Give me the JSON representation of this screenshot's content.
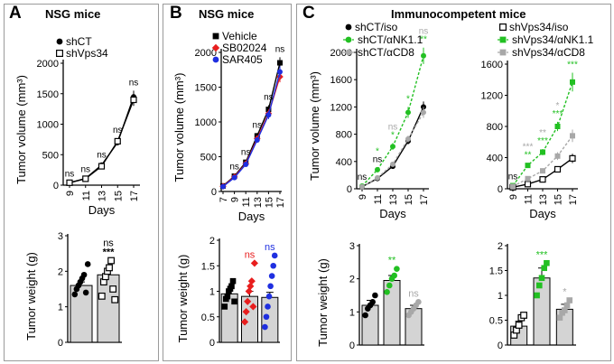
{
  "panels": [
    {
      "letter": "A",
      "title": "NSG mice"
    },
    {
      "letter": "B",
      "title": "NSG mice"
    },
    {
      "letter": "C",
      "title": "Immunocompetent mice"
    }
  ],
  "colors": {
    "black": "#000000",
    "green": "#22c022",
    "gray": "#a8a8a8",
    "red": "#e81e1e",
    "blue": "#1f2fe0",
    "bar": "#d4d4d4"
  },
  "chart_data": [
    {
      "id": "A-growth",
      "type": "line",
      "ylabel": "Tumor volume (mm³)",
      "xlabel": "Days",
      "x": [
        9,
        11,
        13,
        15,
        17
      ],
      "ylim": [
        0,
        2000
      ],
      "yticks": [
        0,
        500,
        1000,
        1500,
        2000
      ],
      "series": [
        {
          "name": "shCT",
          "values": [
            40,
            110,
            330,
            700,
            1450
          ],
          "err": [
            10,
            15,
            30,
            50,
            100
          ],
          "color": "#000000",
          "marker": "filled-circle",
          "dashed": false
        },
        {
          "name": "shVps34",
          "values": [
            40,
            105,
            310,
            720,
            1400
          ],
          "err": [
            10,
            15,
            30,
            50,
            100
          ],
          "color": "#000000",
          "marker": "open-square",
          "dashed": false
        }
      ],
      "annotations": [
        {
          "x": 9,
          "text": "ns",
          "color": "#000000"
        },
        {
          "x": 11,
          "text": "ns",
          "color": "#000000"
        },
        {
          "x": 13,
          "text": "ns",
          "color": "#000000"
        },
        {
          "x": 15,
          "text": "ns",
          "color": "#000000"
        },
        {
          "x": 17,
          "text": "ns",
          "color": "#000000"
        }
      ]
    },
    {
      "id": "A-weight",
      "type": "bar",
      "ylabel": "Tumor weight (g)",
      "ylim": [
        0,
        3
      ],
      "yticks": [
        0,
        1,
        2,
        3
      ],
      "groups": [
        {
          "value": 1.6,
          "err": 0.1,
          "points": [
            1.35,
            1.5,
            1.6,
            1.7,
            1.8,
            1.9,
            1.4,
            2.2
          ],
          "color": "#000000",
          "marker": "filled-circle",
          "label": ""
        },
        {
          "value": 1.9,
          "err": 0.15,
          "points": [
            1.3,
            1.7,
            1.85,
            2.0,
            2.1,
            2.3,
            1.5,
            1.2
          ],
          "color": "#000000",
          "marker": "open-square",
          "label": "ns\n***"
        }
      ]
    },
    {
      "id": "B-growth",
      "type": "line",
      "ylabel": "Tumor volume (mm³)",
      "xlabel": "Days",
      "x": [
        7,
        9,
        11,
        13,
        15,
        17
      ],
      "ylim": [
        0,
        2000
      ],
      "yticks": [
        0,
        500,
        1000,
        1500,
        2000
      ],
      "series": [
        {
          "name": "Vehicle",
          "values": [
            80,
            220,
            420,
            800,
            1180,
            1850
          ],
          "err": [
            10,
            20,
            30,
            40,
            60,
            80
          ],
          "color": "#000000",
          "marker": "filled-square",
          "dashed": false
        },
        {
          "name": "SB02024",
          "values": [
            75,
            210,
            400,
            760,
            1120,
            1650
          ],
          "err": [
            10,
            20,
            30,
            40,
            60,
            80
          ],
          "color": "#e81e1e",
          "marker": "diamond",
          "dashed": false
        },
        {
          "name": "SAR405",
          "values": [
            70,
            200,
            390,
            740,
            1100,
            1720
          ],
          "err": [
            10,
            20,
            30,
            40,
            60,
            80
          ],
          "color": "#1f2fe0",
          "marker": "filled-circle",
          "dashed": false
        }
      ],
      "annotations": [
        {
          "x": 9,
          "text": "ns",
          "color": "#000000"
        },
        {
          "x": 11,
          "text": "ns",
          "color": "#000000"
        },
        {
          "x": 13,
          "text": "ns",
          "color": "#000000"
        },
        {
          "x": 15,
          "text": "ns",
          "color": "#000000"
        },
        {
          "x": 17,
          "text": "ns",
          "color": "#000000"
        }
      ]
    },
    {
      "id": "B-weight",
      "type": "bar",
      "ylabel": "Tumor weight (g)",
      "ylim": [
        0,
        2
      ],
      "yticks": [
        0,
        0.5,
        1,
        1.5,
        2
      ],
      "groups": [
        {
          "value": 0.95,
          "err": 0.06,
          "points": [
            0.7,
            0.85,
            0.9,
            1.0,
            1.05,
            1.1,
            1.2,
            0.8
          ],
          "color": "#000000",
          "marker": "filled-square",
          "label": ""
        },
        {
          "value": 0.9,
          "err": 0.1,
          "points": [
            0.4,
            0.6,
            0.8,
            1.0,
            1.1,
            1.2,
            0.7,
            1.55
          ],
          "color": "#e81e1e",
          "marker": "diamond",
          "label": "ns"
        },
        {
          "value": 0.88,
          "err": 0.1,
          "points": [
            0.3,
            0.5,
            0.7,
            0.9,
            1.1,
            1.3,
            1.5,
            1.7
          ],
          "color": "#1f2fe0",
          "marker": "filled-circle",
          "label": "ns"
        }
      ]
    },
    {
      "id": "C-growth-shCT",
      "type": "line",
      "ylabel": "Tumor volume (mm³)",
      "xlabel": "Days",
      "x": [
        9,
        11,
        13,
        15,
        17
      ],
      "ylim": [
        0,
        2000
      ],
      "yticks": [
        0,
        400,
        800,
        1200,
        1600,
        2000
      ],
      "series": [
        {
          "name": "shCT/iso",
          "values": [
            30,
            150,
            330,
            700,
            1200
          ],
          "err": [
            10,
            20,
            30,
            50,
            80
          ],
          "color": "#000000",
          "marker": "filled-circle",
          "dashed": false
        },
        {
          "name": "shCT/αNK1.1",
          "values": [
            40,
            280,
            620,
            1120,
            1950
          ],
          "err": [
            10,
            30,
            50,
            80,
            120
          ],
          "color": "#22c022",
          "marker": "filled-circle",
          "dashed": true
        },
        {
          "name": "shCT/αCD8",
          "values": [
            30,
            160,
            360,
            730,
            1120
          ],
          "err": [
            10,
            20,
            30,
            50,
            80
          ],
          "color": "#a8a8a8",
          "marker": "filled-circle",
          "dashed": true
        }
      ],
      "annotations": [
        {
          "x": 9,
          "text": "ns",
          "color": "#000000"
        },
        {
          "x": 11,
          "text": "ns",
          "color": "#000000"
        },
        {
          "x": 11,
          "text": "*",
          "color": "#22c022"
        },
        {
          "x": 13,
          "text": "*",
          "color": "#22c022"
        },
        {
          "x": 13,
          "text": "ns",
          "color": "#a8a8a8"
        },
        {
          "x": 15,
          "text": "*",
          "color": "#22c022"
        },
        {
          "x": 17,
          "text": "**",
          "color": "#22c022"
        },
        {
          "x": 17,
          "text": "ns",
          "color": "#a8a8a8"
        }
      ]
    },
    {
      "id": "C-growth-shVps34",
      "type": "line",
      "xlabel": "Days",
      "x": [
        9,
        11,
        13,
        15,
        17
      ],
      "ylim": [
        0,
        1600
      ],
      "yticks": [
        0,
        400,
        800,
        1200,
        1600
      ],
      "series": [
        {
          "name": "shVps34/iso",
          "values": [
            20,
            60,
            120,
            250,
            390
          ],
          "err": [
            5,
            15,
            25,
            40,
            60
          ],
          "color": "#000000",
          "marker": "open-square",
          "dashed": false
        },
        {
          "name": "shVps34/αNK1.1",
          "values": [
            40,
            300,
            470,
            800,
            1370
          ],
          "err": [
            10,
            30,
            40,
            60,
            120
          ],
          "color": "#22c022",
          "marker": "filled-square",
          "dashed": true
        },
        {
          "name": "shVps34/αCD8",
          "values": [
            30,
            130,
            230,
            420,
            680
          ],
          "err": [
            10,
            20,
            30,
            50,
            80
          ],
          "color": "#a8a8a8",
          "marker": "filled-square",
          "dashed": true
        }
      ],
      "annotations": [
        {
          "x": 9,
          "text": "ns",
          "color": "#000000"
        },
        {
          "x": 11,
          "text": "**",
          "color": "#22c022"
        },
        {
          "x": 11,
          "text": "***",
          "color": "#a8a8a8"
        },
        {
          "x": 13,
          "text": "***",
          "color": "#22c022"
        },
        {
          "x": 13,
          "text": "**",
          "color": "#a8a8a8"
        },
        {
          "x": 15,
          "text": "***",
          "color": "#22c022"
        },
        {
          "x": 15,
          "text": "*",
          "color": "#a8a8a8"
        },
        {
          "x": 17,
          "text": "***",
          "color": "#22c022"
        },
        {
          "x": 17,
          "text": "*",
          "color": "#a8a8a8"
        }
      ]
    },
    {
      "id": "C-weight-shCT",
      "type": "bar",
      "ylabel": "Tumor weight (g)",
      "ylim": [
        0,
        3
      ],
      "yticks": [
        0,
        1,
        2,
        3
      ],
      "groups": [
        {
          "value": 1.2,
          "err": 0.15,
          "points": [
            0.9,
            1.1,
            1.2,
            1.3,
            1.5
          ],
          "color": "#000000",
          "marker": "filled-circle",
          "label": ""
        },
        {
          "value": 1.95,
          "err": 0.15,
          "points": [
            1.6,
            1.8,
            2.0,
            2.1,
            2.3
          ],
          "color": "#22c022",
          "marker": "filled-circle",
          "label": "**"
        },
        {
          "value": 1.1,
          "err": 0.1,
          "points": [
            0.9,
            1.0,
            1.1,
            1.2,
            1.3
          ],
          "color": "#a8a8a8",
          "marker": "filled-circle",
          "label": "ns"
        }
      ]
    },
    {
      "id": "C-weight-shVps34",
      "type": "bar",
      "ylim": [
        0,
        2
      ],
      "yticks": [
        0,
        0.5,
        1,
        1.5,
        2
      ],
      "groups": [
        {
          "value": 0.38,
          "err": 0.1,
          "points": [
            0.2,
            0.3,
            0.4,
            0.55,
            0.6
          ],
          "color": "#000000",
          "marker": "open-square",
          "label": ""
        },
        {
          "value": 1.35,
          "err": 0.2,
          "points": [
            1.0,
            1.2,
            1.35,
            1.55,
            1.65
          ],
          "color": "#22c022",
          "marker": "filled-square",
          "label": "***"
        },
        {
          "value": 0.72,
          "err": 0.1,
          "points": [
            0.55,
            0.65,
            0.7,
            0.8,
            0.9
          ],
          "color": "#a8a8a8",
          "marker": "filled-square",
          "label": "*"
        }
      ]
    }
  ]
}
